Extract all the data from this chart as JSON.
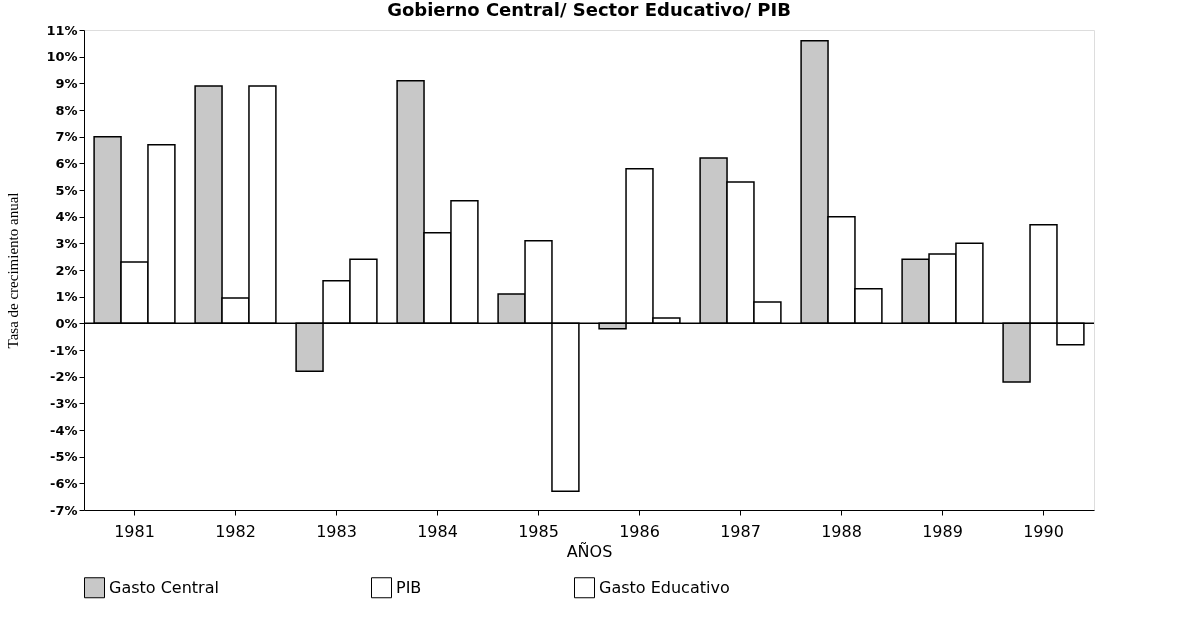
{
  "chart_data": {
    "type": "bar",
    "title": "Gobierno Central/ Sector Educativo/ PIB",
    "xlabel": "AÑOS",
    "ylabel": "Tasa de crecimiento anual",
    "categories": [
      "1981",
      "1982",
      "1983",
      "1984",
      "1985",
      "1986",
      "1987",
      "1988",
      "1989",
      "1990"
    ],
    "series": [
      {
        "name": "Gasto Central",
        "color": "#c8c8c8",
        "values": [
          7.0,
          8.9,
          -1.8,
          9.1,
          1.1,
          -0.2,
          6.2,
          10.6,
          2.4,
          -2.2
        ]
      },
      {
        "name": "PIB",
        "color": "#ffffff",
        "values": [
          2.3,
          0.95,
          1.6,
          3.4,
          3.1,
          5.8,
          5.3,
          4.0,
          2.6,
          3.7
        ]
      },
      {
        "name": "Gasto Educativo",
        "color": "#ffffff",
        "values": [
          6.7,
          8.9,
          2.4,
          4.6,
          -6.3,
          0.2,
          0.8,
          1.3,
          3.0,
          -0.8
        ]
      }
    ],
    "ylim": [
      -7,
      11
    ],
    "yticks": [
      {
        "value": -7,
        "label": "-7%"
      },
      {
        "value": -6,
        "label": "-6%"
      },
      {
        "value": -5,
        "label": "-5%"
      },
      {
        "value": -4,
        "label": "-4%"
      },
      {
        "value": -3,
        "label": "-3%"
      },
      {
        "value": -2,
        "label": "-2%"
      },
      {
        "value": -1,
        "label": "-1%"
      },
      {
        "value": 0,
        "label": "0%"
      },
      {
        "value": 1,
        "label": "1%"
      },
      {
        "value": 2,
        "label": "2%"
      },
      {
        "value": 3,
        "label": "3%"
      },
      {
        "value": 4,
        "label": "4%"
      },
      {
        "value": 5,
        "label": "5%"
      },
      {
        "value": 6,
        "label": "6%"
      },
      {
        "value": 7,
        "label": "7%"
      },
      {
        "value": 8,
        "label": "8%"
      },
      {
        "value": 9,
        "label": "9%"
      },
      {
        "value": 10,
        "label": "10%"
      },
      {
        "value": 11,
        "label": "11%"
      }
    ],
    "ref_lines": [
      {
        "axis": "y",
        "value": 0
      }
    ],
    "grid": false,
    "legend": "bottom"
  }
}
